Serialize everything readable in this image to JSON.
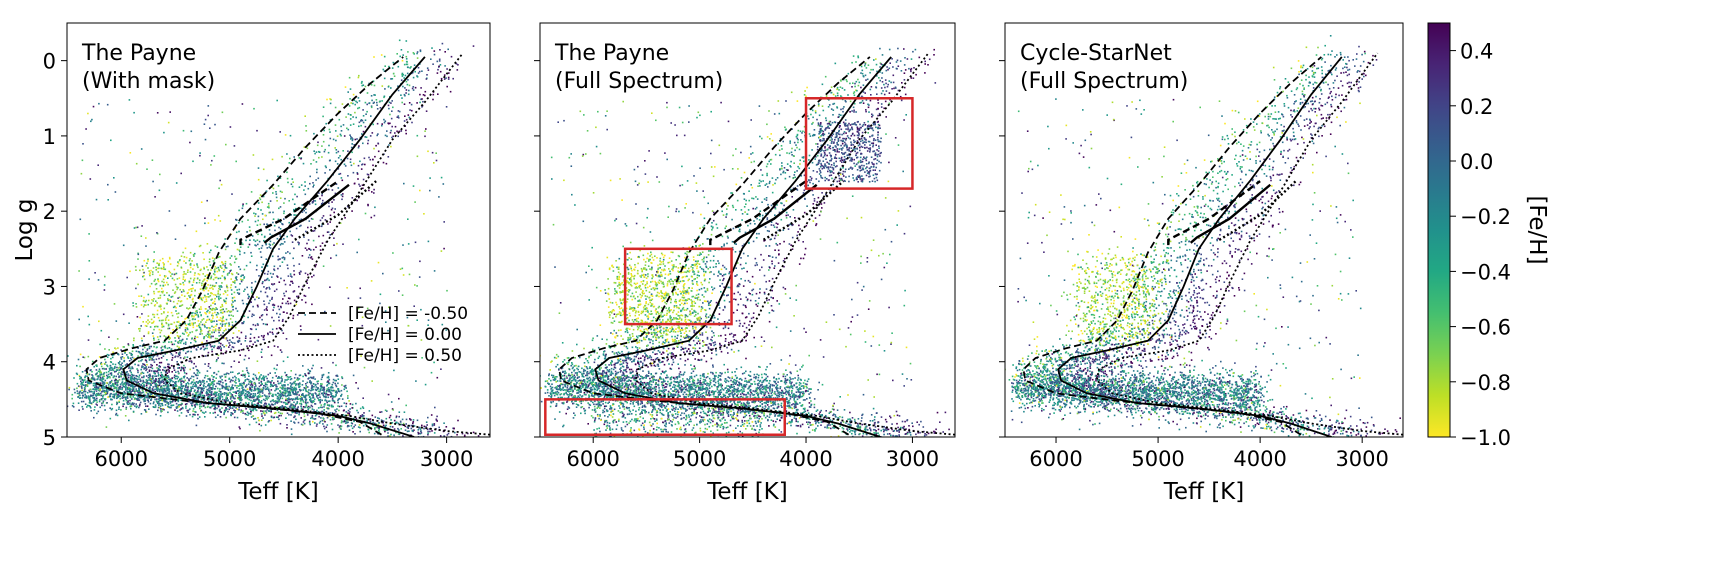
{
  "chart_data": {
    "type": "scatter",
    "panels": [
      {
        "id": "payne-mask",
        "label_lines": [
          "The Payne",
          "(With mask)"
        ],
        "show_legend": true,
        "show_ylabel": true,
        "highlight_boxes": []
      },
      {
        "id": "payne-full",
        "label_lines": [
          "The Payne",
          "(Full Spectrum)"
        ],
        "show_legend": false,
        "show_ylabel": false,
        "highlight_boxes": [
          {
            "teff": [
              4000,
              3000
            ],
            "logg": [
              0.5,
              1.7
            ]
          },
          {
            "teff": [
              5700,
              4700
            ],
            "logg": [
              2.5,
              3.5
            ]
          },
          {
            "teff": [
              6450,
              4200
            ],
            "logg": [
              4.5,
              4.97
            ]
          }
        ]
      },
      {
        "id": "cycle-starnet",
        "label_lines": [
          "Cycle-StarNet",
          "(Full Spectrum)"
        ],
        "show_legend": false,
        "show_ylabel": false,
        "highlight_boxes": []
      }
    ],
    "x_axis": {
      "label": "Teff [K]",
      "range": [
        6500,
        2600
      ],
      "reversed": true,
      "ticks": [
        6000,
        5000,
        4000,
        3000
      ],
      "tick_labels": [
        "6000",
        "5000",
        "4000",
        "3000"
      ]
    },
    "y_axis": {
      "label": "Log g",
      "range": [
        -0.5,
        5
      ],
      "reversed": true,
      "ticks": [
        0,
        1,
        2,
        3,
        4,
        5
      ],
      "tick_labels": [
        "0",
        "1",
        "2",
        "3",
        "4",
        "5"
      ]
    },
    "colorbar": {
      "label": "[Fe/H]",
      "range": [
        -1.0,
        0.5
      ],
      "ticks": [
        -1.0,
        -0.8,
        -0.6,
        -0.4,
        -0.2,
        0.0,
        0.2,
        0.4
      ],
      "tick_labels": [
        "−1.0",
        "−0.8",
        "−0.6",
        "−0.4",
        "−0.2",
        "0.0",
        "0.2",
        "0.4"
      ],
      "colormap": "viridis_r"
    },
    "isochrones": [
      {
        "legend_label": "[Fe/H] = -0.50",
        "feh": -0.5,
        "linestyle": "dashed",
        "points": [
          [
            3600,
            4.97
          ],
          [
            3800,
            4.8
          ],
          [
            4200,
            4.68
          ],
          [
            4800,
            4.6
          ],
          [
            5400,
            4.52
          ],
          [
            6000,
            4.42
          ],
          [
            6300,
            4.25
          ],
          [
            6320,
            4.1
          ],
          [
            6200,
            3.95
          ],
          [
            5900,
            3.82
          ],
          [
            5600,
            3.72
          ],
          [
            5400,
            3.45
          ],
          [
            5250,
            3.05
          ],
          [
            5100,
            2.55
          ],
          [
            4900,
            2.1
          ],
          [
            4600,
            1.65
          ],
          [
            4300,
            1.15
          ],
          [
            4000,
            0.7
          ],
          [
            3700,
            0.3
          ],
          [
            3400,
            -0.05
          ]
        ],
        "hb": [
          [
            4900,
            2.45
          ],
          [
            4900,
            2.38
          ],
          [
            4500,
            2.1
          ],
          [
            4000,
            1.6
          ]
        ]
      },
      {
        "legend_label": "[Fe/H] = 0.00",
        "feh": 0.0,
        "linestyle": "solid",
        "points": [
          [
            3300,
            5.0
          ],
          [
            3700,
            4.82
          ],
          [
            4000,
            4.72
          ],
          [
            4600,
            4.62
          ],
          [
            5200,
            4.55
          ],
          [
            5700,
            4.42
          ],
          [
            5950,
            4.25
          ],
          [
            5980,
            4.1
          ],
          [
            5850,
            3.95
          ],
          [
            5500,
            3.85
          ],
          [
            5100,
            3.72
          ],
          [
            4900,
            3.45
          ],
          [
            4750,
            3.0
          ],
          [
            4600,
            2.5
          ],
          [
            4400,
            2.1
          ],
          [
            4100,
            1.6
          ],
          [
            3800,
            1.05
          ],
          [
            3500,
            0.45
          ],
          [
            3200,
            -0.05
          ]
        ],
        "hb": [
          [
            4680,
            2.42
          ],
          [
            4620,
            2.35
          ],
          [
            4300,
            2.1
          ],
          [
            3900,
            1.65
          ]
        ]
      },
      {
        "legend_label": "[Fe/H] = 0.50",
        "feh": 0.5,
        "linestyle": "dotted",
        "points": [
          [
            2600,
            4.97
          ],
          [
            3000,
            4.92
          ],
          [
            3500,
            4.82
          ],
          [
            3900,
            4.72
          ],
          [
            4500,
            4.62
          ],
          [
            5000,
            4.55
          ],
          [
            5450,
            4.42
          ],
          [
            5600,
            4.25
          ],
          [
            5580,
            4.1
          ],
          [
            5350,
            3.95
          ],
          [
            4900,
            3.85
          ],
          [
            4600,
            3.72
          ],
          [
            4450,
            3.4
          ],
          [
            4300,
            2.95
          ],
          [
            4100,
            2.4
          ],
          [
            3850,
            1.85
          ],
          [
            3500,
            1.05
          ],
          [
            3200,
            0.55
          ],
          [
            2850,
            -0.1
          ]
        ],
        "hb": [
          [
            4400,
            2.38
          ],
          [
            4300,
            2.3
          ],
          [
            4000,
            2.05
          ],
          [
            3650,
            1.6
          ]
        ]
      }
    ],
    "legend_placement": "lower-right (left panel)",
    "grid": false
  }
}
